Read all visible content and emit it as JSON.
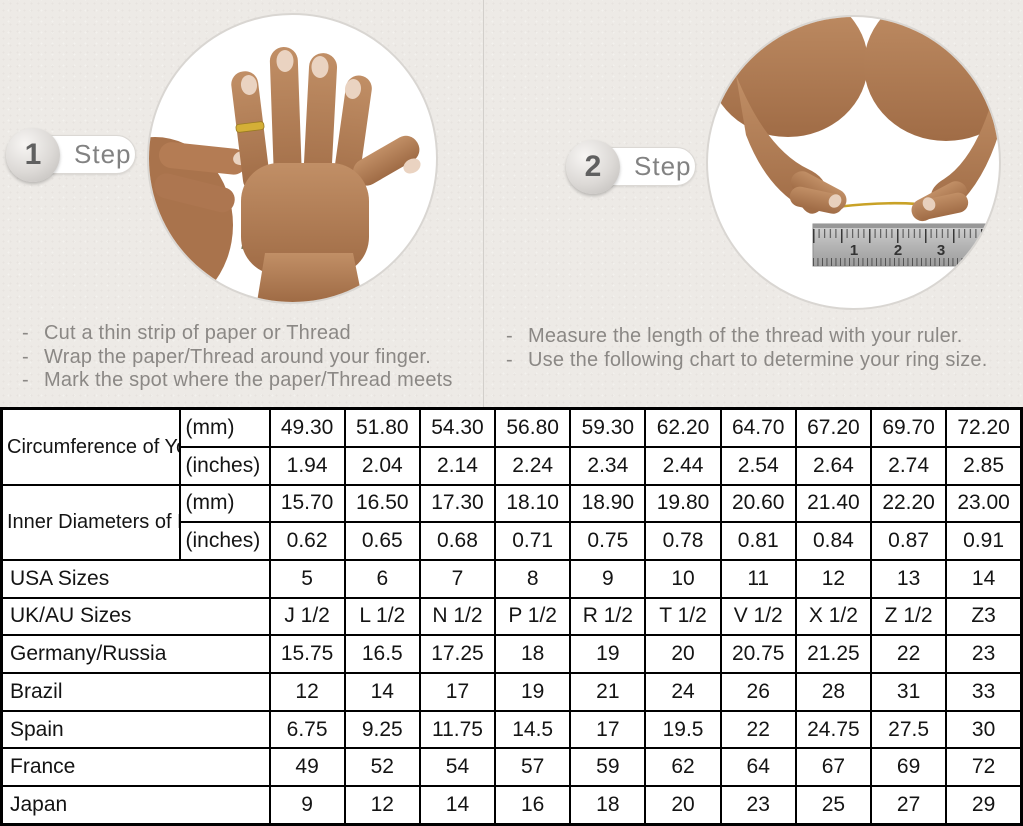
{
  "page": {
    "bullet_char": "-"
  },
  "colors": {
    "page_bg": "#edeae6",
    "table_gray": "#d9d9d9",
    "gold": "#c9a227",
    "table_border": "#000000",
    "instruction_text": "#8b8885"
  },
  "steps": [
    {
      "number": "1",
      "label": "Step",
      "bullets": [
        "Cut a thin strip of paper or Thread",
        "Wrap the paper/Thread around your finger.",
        "Mark the spot where the paper/Thread meets"
      ]
    },
    {
      "number": "2",
      "label": "Step",
      "bullets": [
        "Measure the length of the thread with your ruler.",
        "Use the following chart to determine your ring size."
      ]
    }
  ],
  "ruler": {
    "numbers": [
      "1",
      "2",
      "3"
    ]
  },
  "table": {
    "rows": [
      {
        "label": "Circumference of Your Finger",
        "unit": "(mm)",
        "gray": true,
        "values": [
          "49.30",
          "51.80",
          "54.30",
          "56.80",
          "59.30",
          "62.20",
          "64.70",
          "67.20",
          "69.70",
          "72.20"
        ]
      },
      {
        "unit": "(inches)",
        "values": [
          "1.94",
          "2.04",
          "2.14",
          "2.24",
          "2.34",
          "2.44",
          "2.54",
          "2.64",
          "2.74",
          "2.85"
        ]
      },
      {
        "label": "Inner Diameters of Rings",
        "unit": "(mm)",
        "values": [
          "15.70",
          "16.50",
          "17.30",
          "18.10",
          "18.90",
          "19.80",
          "20.60",
          "21.40",
          "22.20",
          "23.00"
        ]
      },
      {
        "unit": "(inches)",
        "values": [
          "0.62",
          "0.65",
          "0.68",
          "0.71",
          "0.75",
          "0.78",
          "0.81",
          "0.84",
          "0.87",
          "0.91"
        ]
      },
      {
        "label": "USA Sizes",
        "gray": true,
        "values": [
          "5",
          "6",
          "7",
          "8",
          "9",
          "10",
          "11",
          "12",
          "13",
          "14"
        ]
      },
      {
        "label": "UK/AU Sizes",
        "values": [
          "J 1/2",
          "L 1/2",
          "N 1/2",
          "P 1/2",
          "R 1/2",
          "T 1/2",
          "V 1/2",
          "X 1/2",
          "Z 1/2",
          "Z3"
        ]
      },
      {
        "label": "Germany/Russia",
        "values": [
          "15.75",
          "16.5",
          "17.25",
          "18",
          "19",
          "20",
          "20.75",
          "21.25",
          "22",
          "23"
        ]
      },
      {
        "label": "Brazil",
        "values": [
          "12",
          "14",
          "17",
          "19",
          "21",
          "24",
          "26",
          "28",
          "31",
          "33"
        ]
      },
      {
        "label": "Spain",
        "values": [
          "6.75",
          "9.25",
          "11.75",
          "14.5",
          "17",
          "19.5",
          "22",
          "24.75",
          "27.5",
          "30"
        ]
      },
      {
        "label": "France",
        "values": [
          "49",
          "52",
          "54",
          "57",
          "59",
          "62",
          "64",
          "67",
          "69",
          "72"
        ]
      },
      {
        "label": "Japan",
        "values": [
          "9",
          "12",
          "14",
          "16",
          "18",
          "20",
          "23",
          "25",
          "27",
          "29"
        ]
      }
    ]
  }
}
